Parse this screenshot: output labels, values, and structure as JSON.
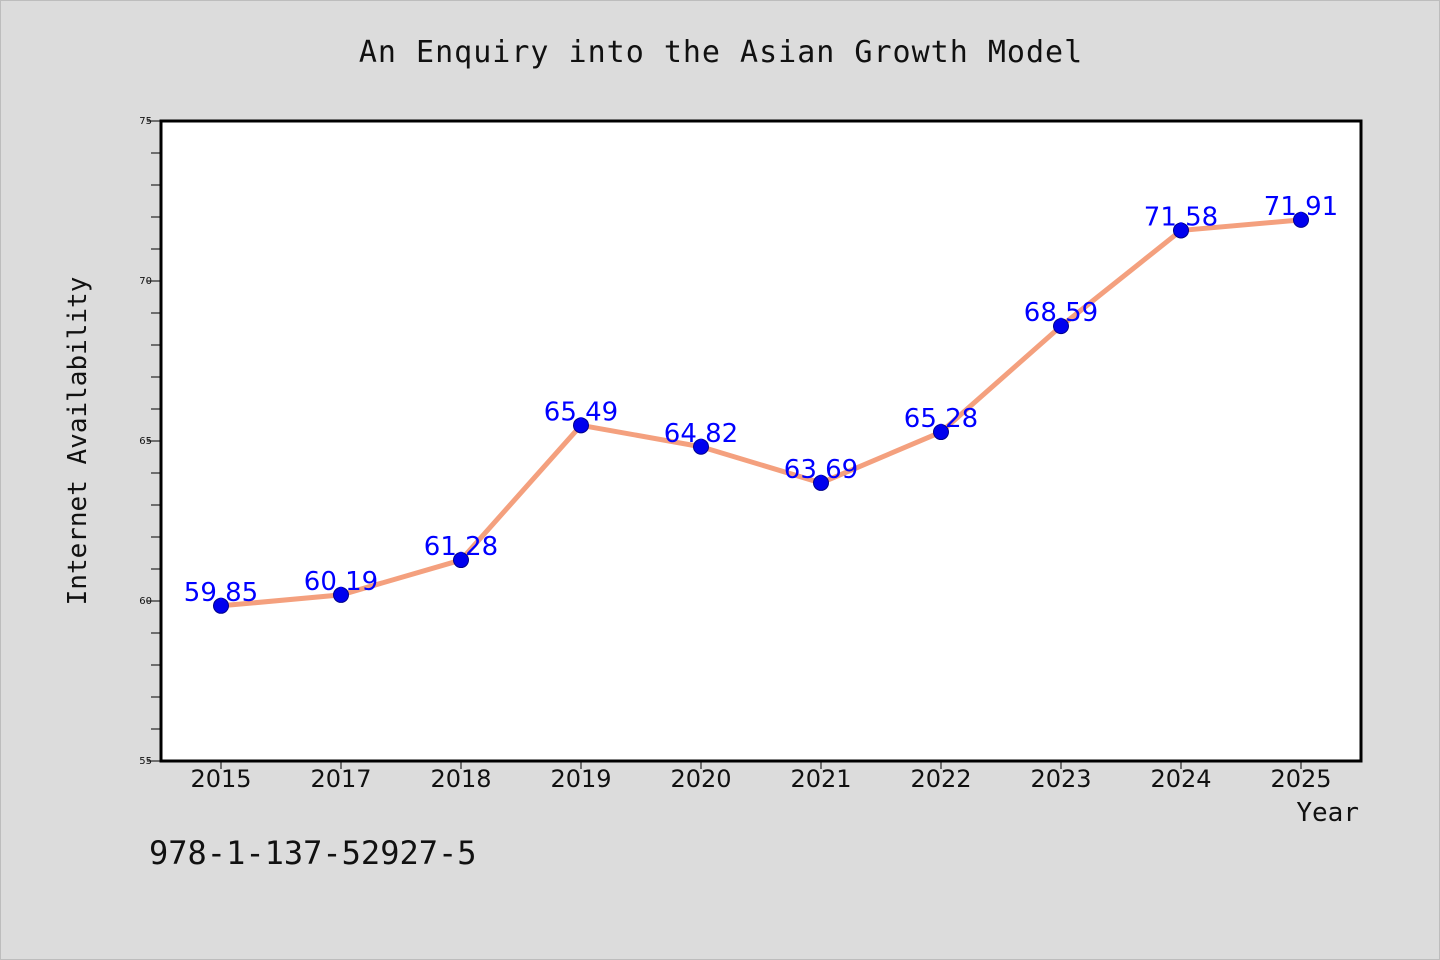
{
  "chart_data": {
    "type": "line",
    "title": "An Enquiry into the Asian Growth Model",
    "xlabel": "Year",
    "ylabel": "Internet Availability",
    "categories": [
      "2015",
      "2017",
      "2018",
      "2019",
      "2020",
      "2021",
      "2022",
      "2023",
      "2024",
      "2025"
    ],
    "series": [
      {
        "values": [
          59.85,
          60.19,
          61.28,
          65.49,
          64.82,
          63.69,
          65.28,
          68.59,
          71.58,
          71.91
        ],
        "labels": [
          "59.85",
          "60.19",
          "61.28",
          "65.49",
          "64.82",
          "63.69",
          "65.28",
          "68.59",
          "71.58",
          "71.91"
        ]
      }
    ],
    "ylim": [
      55,
      75
    ],
    "yticks": [
      "55",
      "60",
      "65",
      "70",
      "75"
    ],
    "grid": false,
    "line_color": "#f4a07e",
    "marker_color": "#0000ee",
    "label_color": "#0000ff"
  },
  "footer": {
    "code": "978-1-137-52927-5"
  }
}
